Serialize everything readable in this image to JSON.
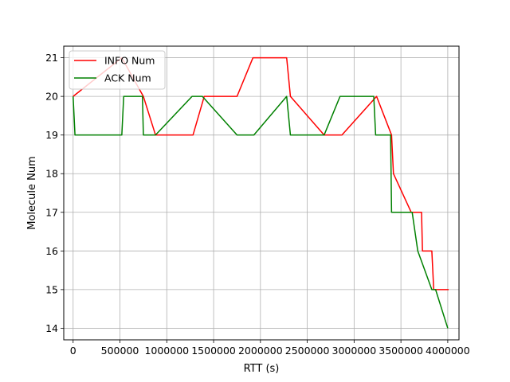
{
  "chart_data": {
    "type": "line",
    "title": "",
    "xlabel": "RTT (s)",
    "ylabel": "Molecule Num",
    "xlim": [
      -100000,
      4120000
    ],
    "ylim": [
      13.7,
      21.3
    ],
    "xticks": [
      0,
      500000,
      1000000,
      1500000,
      2000000,
      2500000,
      3000000,
      3500000,
      4000000
    ],
    "xtick_labels": [
      "0",
      "500000",
      "1000000",
      "1500000",
      "2000000",
      "2500000",
      "3000000",
      "3500000",
      "4000000"
    ],
    "yticks": [
      14,
      15,
      16,
      17,
      18,
      19,
      20,
      21
    ],
    "ytick_labels": [
      "14",
      "15",
      "16",
      "17",
      "18",
      "19",
      "20",
      "21"
    ],
    "grid": true,
    "legend": "top-left",
    "series": [
      {
        "name": "INFO Num",
        "color": "#ff0000",
        "x": [
          0,
          520000,
          750000,
          880000,
          1280000,
          1400000,
          1750000,
          1920000,
          2280000,
          2320000,
          2680000,
          2870000,
          3240000,
          3400000,
          3420000,
          3610000,
          3720000,
          3730000,
          3830000,
          3850000,
          4010000
        ],
        "y": [
          20,
          21,
          20,
          19,
          19,
          20,
          20,
          21,
          21,
          20,
          19,
          19,
          20,
          19,
          18,
          17,
          17,
          16,
          16,
          15,
          15
        ]
      },
      {
        "name": "ACK Num",
        "color": "#008000",
        "x": [
          0,
          20000,
          520000,
          540000,
          740000,
          750000,
          880000,
          1270000,
          1380000,
          1750000,
          1930000,
          2280000,
          2320000,
          2680000,
          2850000,
          3210000,
          3230000,
          3390000,
          3400000,
          3620000,
          3680000,
          3830000,
          3870000,
          4000000
        ],
        "y": [
          20,
          19,
          19,
          20,
          20,
          19,
          19,
          20,
          20,
          19,
          19,
          20,
          19,
          19,
          20,
          20,
          19,
          19,
          17,
          17,
          16,
          15,
          15,
          14
        ]
      }
    ]
  },
  "colors": {
    "grid": "#b0b0b0",
    "axes": "#000000",
    "legend_border": "#cccccc"
  }
}
